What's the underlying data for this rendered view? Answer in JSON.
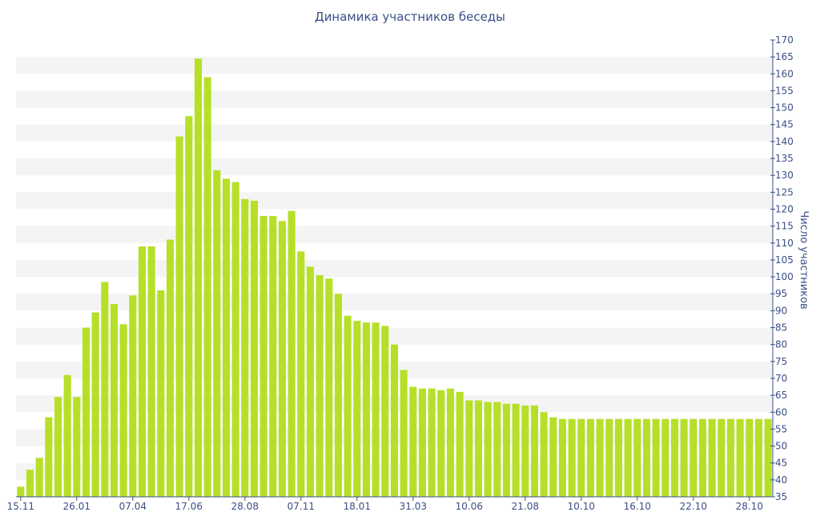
{
  "chart_data": {
    "type": "bar",
    "title": "Динамика участников беседы",
    "xlabel": "",
    "ylabel": "Число участников",
    "ylim": [
      35,
      170
    ],
    "ytick_step": 5,
    "grid": "alternating horizontal bands",
    "bar_color": "#b6e028",
    "band_color": "#f4f4f4",
    "text_color": "#3b4f86",
    "y_axis_position": "right",
    "xticks": [
      {
        "label": "15.11",
        "index": 0
      },
      {
        "label": "26.01",
        "index": 6
      },
      {
        "label": "07.04",
        "index": 12
      },
      {
        "label": "17.06",
        "index": 18
      },
      {
        "label": "28.08",
        "index": 24
      },
      {
        "label": "07.11",
        "index": 30
      },
      {
        "label": "18.01",
        "index": 36
      },
      {
        "label": "31.03",
        "index": 42
      },
      {
        "label": "10.06",
        "index": 48
      },
      {
        "label": "21.08",
        "index": 54
      },
      {
        "label": "10.10",
        "index": 60
      },
      {
        "label": "16.10",
        "index": 66
      },
      {
        "label": "22.10",
        "index": 72
      },
      {
        "label": "28.10",
        "index": 78
      }
    ],
    "values": [
      38,
      43,
      46.5,
      58.5,
      64.5,
      71,
      64.5,
      85,
      89.5,
      98.5,
      92,
      86,
      94.5,
      109,
      109,
      96,
      111,
      141.5,
      147.5,
      164.5,
      159,
      131.5,
      129,
      128,
      123,
      122.5,
      118,
      118,
      116.5,
      119.5,
      107.5,
      103,
      100.5,
      99.5,
      95,
      88.5,
      87,
      86.5,
      86.5,
      85.5,
      80,
      72.5,
      67.5,
      67,
      67,
      66.5,
      67,
      66,
      63.5,
      63.5,
      63,
      63,
      62.5,
      62.5,
      62,
      62,
      60,
      58.5,
      58,
      58,
      58,
      58,
      58,
      58,
      58,
      58,
      58,
      58,
      58,
      58,
      58,
      58,
      58,
      58,
      58,
      58,
      58,
      58,
      58,
      58,
      58
    ]
  }
}
